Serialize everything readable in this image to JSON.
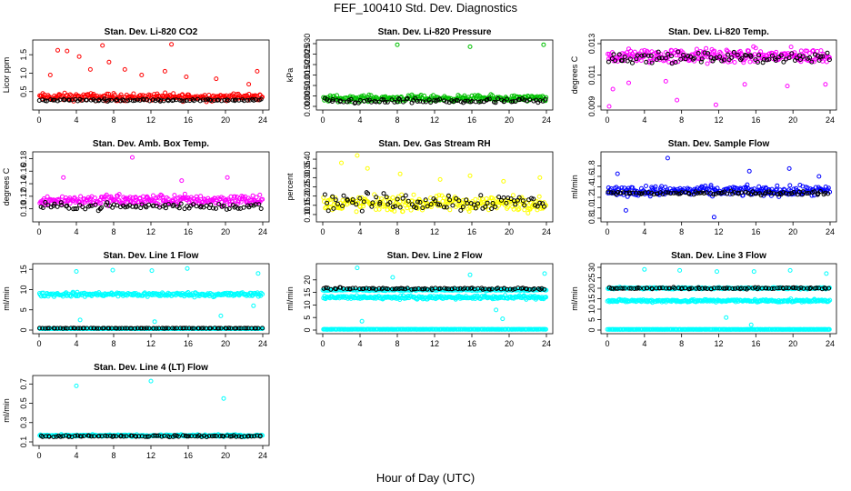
{
  "figure": {
    "title": "FEF_100410  Std. Dev. Diagnostics",
    "xlabel": "Hour of Day (UTC)"
  },
  "chart_data": [
    {
      "type": "scatter",
      "title": "Stan. Dev. Li-820 CO2",
      "ylabel": "Licor ppm",
      "xlim": [
        0,
        24
      ],
      "ylim": [
        0.1,
        1.8
      ],
      "xticks": [
        "0",
        "4",
        "8",
        "12",
        "16",
        "20",
        "24"
      ],
      "yticks": [
        "0.5",
        "1.0",
        "1.5"
      ],
      "series": [
        {
          "color": "#ff0000",
          "base": 0.35,
          "spread": 0.15,
          "outliers": [
            [
              1.2,
              0.95
            ],
            [
              2.0,
              1.62
            ],
            [
              3.0,
              1.6
            ],
            [
              4.3,
              1.45
            ],
            [
              5.5,
              1.1
            ],
            [
              6.8,
              1.75
            ],
            [
              7.5,
              1.3
            ],
            [
              9.2,
              1.1
            ],
            [
              11.0,
              0.95
            ],
            [
              13.5,
              1.05
            ],
            [
              14.2,
              1.78
            ],
            [
              15.8,
              0.9
            ],
            [
              19.0,
              0.85
            ],
            [
              22.5,
              0.7
            ],
            [
              23.4,
              1.05
            ]
          ]
        },
        {
          "color": "#000000",
          "base": 0.27,
          "spread": 0.04,
          "outliers": []
        }
      ]
    },
    {
      "type": "scatter",
      "title": "Stan. Dev. Li-820 Pressure",
      "ylabel": "kPa",
      "xlim": [
        0,
        24
      ],
      "ylim": [
        0,
        0.03
      ],
      "xticks": [
        "0",
        "4",
        "8",
        "12",
        "16",
        "20",
        "24"
      ],
      "yticks": [
        "0.000",
        "0.005",
        "0.010",
        "0.015",
        "0.020",
        "0.025",
        "0.030"
      ],
      "series": [
        {
          "color": "#00c000",
          "base": 0.0038,
          "spread": 0.0022,
          "outliers": [
            [
              8.0,
              0.0295
            ],
            [
              15.8,
              0.0285
            ],
            [
              23.7,
              0.0295
            ]
          ]
        },
        {
          "color": "#000000",
          "base": 0.0025,
          "spread": 0.0018,
          "outliers": []
        }
      ]
    },
    {
      "type": "scatter",
      "title": "Stan. Dev. Li-820 Temp.",
      "ylabel": "degrees C",
      "xlim": [
        0,
        24
      ],
      "ylim": [
        0.009,
        0.013
      ],
      "xticks": [
        "0",
        "4",
        "8",
        "12",
        "16",
        "20",
        "24"
      ],
      "yticks": [
        "0.009",
        "0.011",
        "0.013"
      ],
      "series": [
        {
          "color": "#ff00ff",
          "base": 0.0122,
          "spread": 0.0007,
          "outliers": [
            [
              0.2,
              0.0088
            ],
            [
              0.6,
              0.0101
            ],
            [
              2.3,
              0.0105
            ],
            [
              6.3,
              0.0106
            ],
            [
              7.5,
              0.0094
            ],
            [
              11.7,
              0.0091
            ],
            [
              14.8,
              0.0104
            ],
            [
              19.4,
              0.0103
            ],
            [
              23.5,
              0.0104
            ]
          ]
        },
        {
          "color": "#000000",
          "base": 0.0121,
          "spread": 0.0005,
          "outliers": []
        }
      ]
    },
    {
      "type": "scatter",
      "title": "Stan. Dev. Amb. Box Temp.",
      "ylabel": "degrees C",
      "xlim": [
        0,
        24
      ],
      "ylim": [
        0.085,
        0.185
      ],
      "xticks": [
        "0",
        "4",
        "8",
        "12",
        "16",
        "20",
        "24"
      ],
      "yticks": [
        "0.10",
        "0.12",
        "0.14",
        "0.16",
        "0.18"
      ],
      "series": [
        {
          "color": "#ff00ff",
          "base": 0.114,
          "spread": 0.013,
          "outliers": [
            [
              2.6,
              0.15
            ],
            [
              10.0,
              0.182
            ],
            [
              15.3,
              0.145
            ],
            [
              20.2,
              0.15
            ]
          ]
        },
        {
          "color": "#000000",
          "base": 0.104,
          "spread": 0.008,
          "outliers": []
        }
      ]
    },
    {
      "type": "scatter",
      "title": "Stan. Dev. Gas Stream RH",
      "ylabel": "percent",
      "xlim": [
        0,
        24
      ],
      "ylim": [
        0.08,
        0.42
      ],
      "xticks": [
        "0",
        "4",
        "8",
        "12",
        "16",
        "20",
        "24"
      ],
      "yticks": [
        "0.10",
        "0.15",
        "0.20",
        "0.25",
        "0.30",
        "0.35",
        "0.40"
      ],
      "series": [
        {
          "color": "#ffff00",
          "base": 0.16,
          "spread": 0.06,
          "outliers": [
            [
              2.0,
              0.38
            ],
            [
              3.7,
              0.42
            ],
            [
              4.8,
              0.35
            ],
            [
              8.3,
              0.32
            ],
            [
              12.6,
              0.29
            ],
            [
              15.8,
              0.31
            ],
            [
              19.4,
              0.28
            ],
            [
              23.3,
              0.3
            ]
          ]
        },
        {
          "color": "#000000",
          "base": 0.17,
          "spread": 0.07,
          "outliers": []
        }
      ]
    },
    {
      "type": "scatter",
      "title": "Stan. Dev. Sample Flow",
      "ylabel": "ml/min",
      "xlim": [
        0,
        24
      ],
      "ylim": [
        0.8,
        2.0
      ],
      "xticks": [
        "0",
        "4",
        "8",
        "12",
        "16",
        "20",
        "24"
      ],
      "yticks": [
        "0.8",
        "1.0",
        "1.2",
        "1.4",
        "1.6",
        "1.8"
      ],
      "series": [
        {
          "color": "#0000ff",
          "base": 1.32,
          "spread": 0.14,
          "outliers": [
            [
              1.1,
              1.65
            ],
            [
              2.0,
              0.95
            ],
            [
              6.5,
              1.95
            ],
            [
              11.5,
              0.82
            ],
            [
              15.3,
              1.7
            ],
            [
              19.6,
              1.75
            ],
            [
              22.8,
              1.6
            ]
          ]
        },
        {
          "color": "#000000",
          "base": 1.28,
          "spread": 0.05,
          "outliers": []
        }
      ]
    },
    {
      "type": "scatter",
      "title": "Stan. Dev. Line 1 Flow",
      "ylabel": "ml/min",
      "xlim": [
        0,
        24
      ],
      "ylim": [
        0,
        15.5
      ],
      "xticks": [
        "0",
        "4",
        "8",
        "12",
        "16",
        "20",
        "24"
      ],
      "yticks": [
        "0",
        "5",
        "10",
        "15"
      ],
      "series": [
        {
          "color": "#00ffff",
          "base": 8.8,
          "spread": 0.8,
          "outliers": [
            [
              4.0,
              14.5
            ],
            [
              4.4,
              2.5
            ],
            [
              7.9,
              14.8
            ],
            [
              12.1,
              14.7
            ],
            [
              12.4,
              2.1
            ],
            [
              15.9,
              15.2
            ],
            [
              19.5,
              3.5
            ],
            [
              23.5,
              14.0
            ],
            [
              23.0,
              6.0
            ]
          ]
        },
        {
          "color": "#00ffff",
          "base": 0.35,
          "spread": 0.05,
          "outliers": []
        },
        {
          "color": "#000000",
          "base": 0.45,
          "spread": 0.06,
          "outliers": []
        }
      ]
    },
    {
      "type": "scatter",
      "title": "Stan. Dev. Line 2 Flow",
      "ylabel": "ml/min",
      "xlim": [
        0,
        24
      ],
      "ylim": [
        0,
        25
      ],
      "xticks": [
        "0",
        "4",
        "8",
        "12",
        "16",
        "20",
        "24"
      ],
      "yticks": [
        "0",
        "5",
        "10",
        "15",
        "20"
      ],
      "series": [
        {
          "color": "#00ffff",
          "base": 13.0,
          "spread": 1.0,
          "outliers": [
            [
              3.7,
              24.8
            ],
            [
              4.2,
              3.5
            ],
            [
              7.5,
              21.0
            ],
            [
              15.8,
              22.0
            ],
            [
              18.6,
              8.0
            ],
            [
              19.3,
              4.5
            ],
            [
              23.8,
              22.5
            ]
          ]
        },
        {
          "color": "#00ffff",
          "base": 16.0,
          "spread": 0.5,
          "outliers": []
        },
        {
          "color": "#00ffff",
          "base": 0.3,
          "spread": 0.05,
          "outliers": []
        },
        {
          "color": "#000000",
          "base": 16.5,
          "spread": 0.6,
          "outliers": []
        }
      ]
    },
    {
      "type": "scatter",
      "title": "Stan. Dev. Line 3 Flow",
      "ylabel": "ml/min",
      "xlim": [
        0,
        24
      ],
      "ylim": [
        0,
        30
      ],
      "xticks": [
        "0",
        "4",
        "8",
        "12",
        "16",
        "20",
        "24"
      ],
      "yticks": [
        "0",
        "5",
        "10",
        "15",
        "20",
        "25",
        "30"
      ],
      "series": [
        {
          "color": "#00ffff",
          "base": 14.0,
          "spread": 1.0,
          "outliers": [
            [
              4.0,
              29.0
            ],
            [
              7.8,
              28.5
            ],
            [
              11.8,
              28.0
            ],
            [
              15.5,
              2.5
            ],
            [
              15.8,
              28.0
            ],
            [
              19.7,
              28.5
            ],
            [
              23.6,
              27.0
            ],
            [
              12.8,
              6.0
            ]
          ]
        },
        {
          "color": "#00ffff",
          "base": 20.0,
          "spread": 0.6,
          "outliers": []
        },
        {
          "color": "#00ffff",
          "base": 0.3,
          "spread": 0.05,
          "outliers": []
        },
        {
          "color": "#000000",
          "base": 20.0,
          "spread": 0.6,
          "outliers": []
        }
      ]
    },
    {
      "type": "scatter",
      "title": "Stan. Dev. Line 4 (LT) Flow",
      "ylabel": "ml/min",
      "xlim": [
        0,
        24
      ],
      "ylim": [
        0.1,
        0.75
      ],
      "xticks": [
        "0",
        "4",
        "8",
        "12",
        "16",
        "20",
        "24"
      ],
      "yticks": [
        "0.1",
        "0.3",
        "0.5",
        "0.7"
      ],
      "series": [
        {
          "color": "#00ffff",
          "base": 0.165,
          "spread": 0.015,
          "outliers": [
            [
              4.0,
              0.68
            ],
            [
              12.0,
              0.73
            ],
            [
              19.8,
              0.55
            ]
          ]
        },
        {
          "color": "#000000",
          "base": 0.16,
          "spread": 0.012,
          "outliers": []
        }
      ]
    }
  ]
}
